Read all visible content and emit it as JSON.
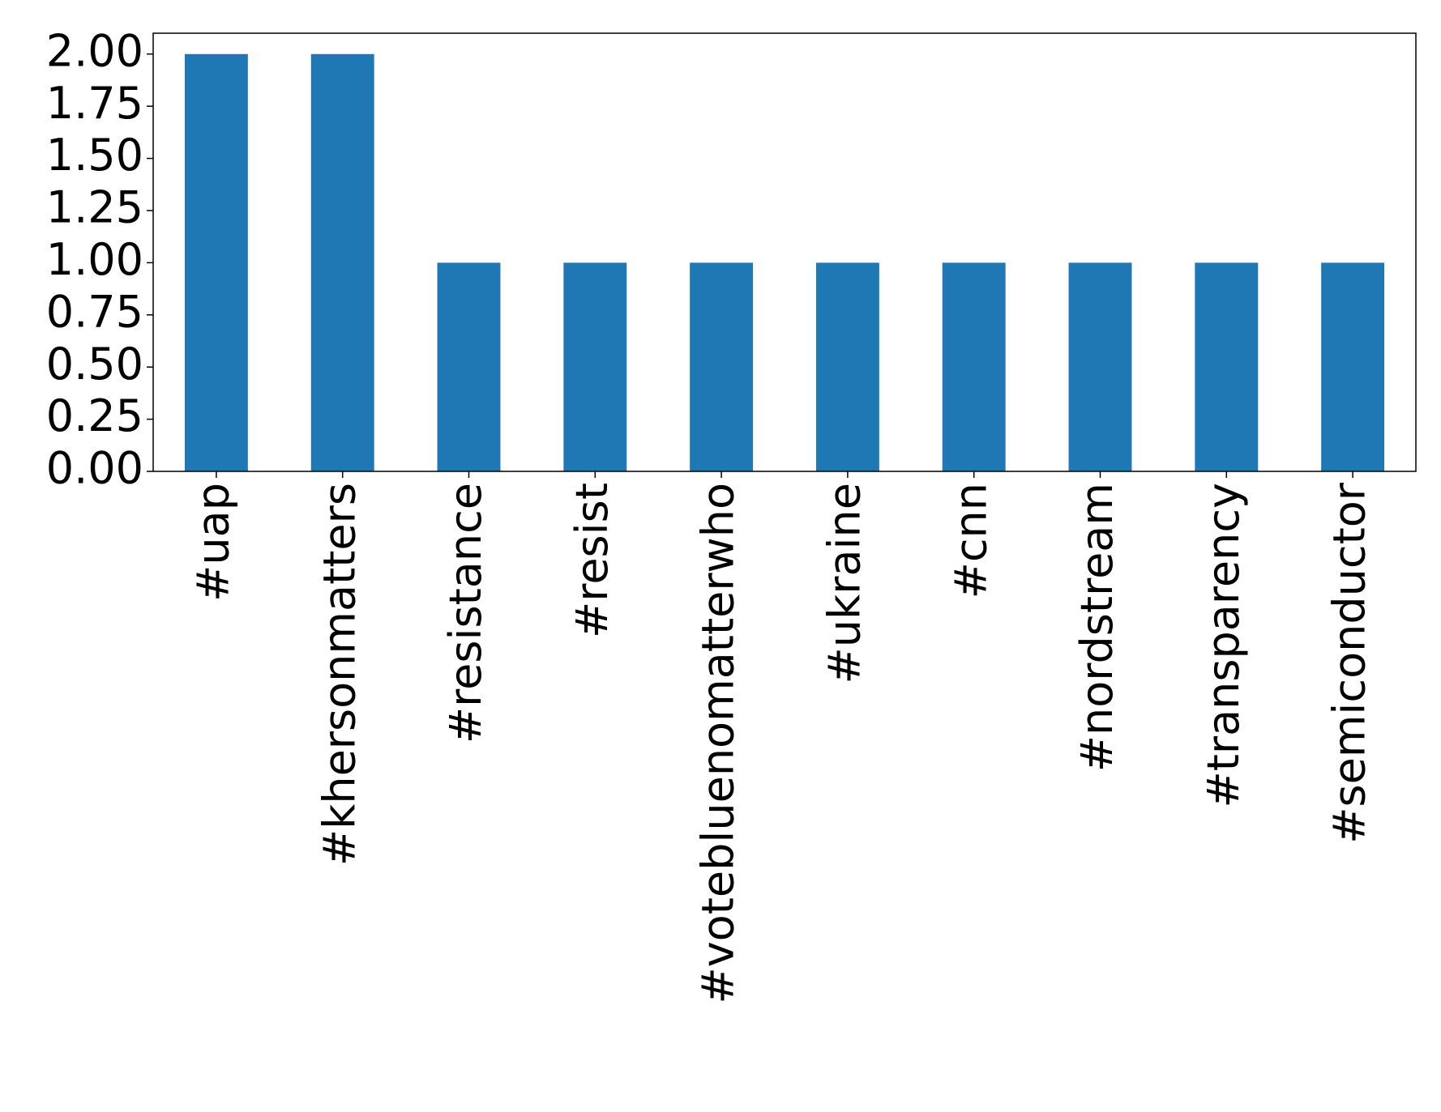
{
  "chart_data": {
    "type": "bar",
    "categories": [
      "#uap",
      "#khersonmatters",
      "#resistance",
      "#resist",
      "#votebluenomatterwho",
      "#ukraine",
      "#cnn",
      "#nordstream",
      "#transparency",
      "#semiconductor"
    ],
    "values": [
      2,
      2,
      1,
      1,
      1,
      1,
      1,
      1,
      1,
      1
    ],
    "color": "#1f77b4",
    "ylim": [
      0,
      2.1
    ],
    "yticks": [
      {
        "value": 0,
        "label": "0.00"
      },
      {
        "value": 0.25,
        "label": "0.25"
      },
      {
        "value": 0.5,
        "label": "0.50"
      },
      {
        "value": 0.75,
        "label": "0.75"
      },
      {
        "value": 1,
        "label": "1.00"
      },
      {
        "value": 1.25,
        "label": "1.25"
      },
      {
        "value": 1.5,
        "label": "1.50"
      },
      {
        "value": 1.75,
        "label": "1.75"
      },
      {
        "value": 2,
        "label": "2.00"
      }
    ],
    "grid": false
  }
}
